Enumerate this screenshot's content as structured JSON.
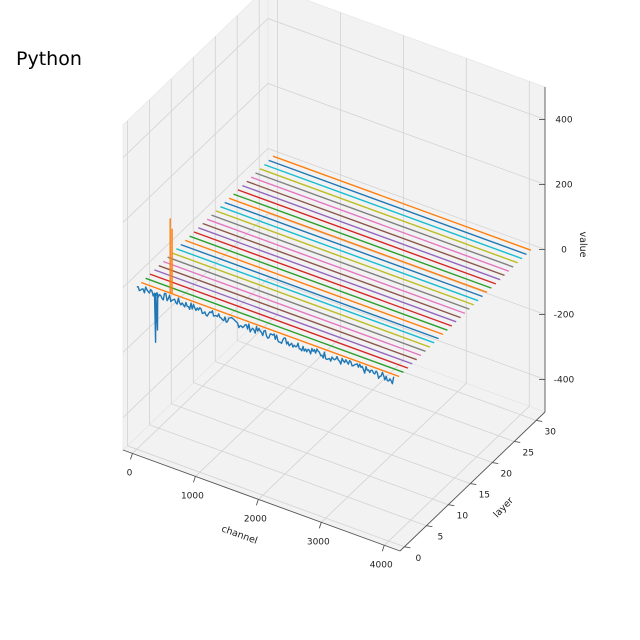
{
  "page_title": "Python",
  "chart_data": {
    "type": "line-3d",
    "title": "",
    "xlabel": "channel",
    "ylabel": "layer",
    "zlabel": "value",
    "xlim": [
      -150,
      4250
    ],
    "ylim": [
      -1,
      32
    ],
    "zlim": [
      -500,
      500
    ],
    "xticks": [
      0,
      1000,
      2000,
      3000,
      4000
    ],
    "yticks": [
      0,
      5,
      10,
      15,
      20,
      25,
      30
    ],
    "zticks": [
      -400,
      -200,
      0,
      200,
      400
    ],
    "grid": true,
    "pane_color": "#f2f2f2",
    "series_colors": [
      "#1f77b4",
      "#ff7f0e",
      "#2ca02c",
      "#d62728",
      "#9467bd",
      "#8c564b",
      "#e377c2",
      "#7f7f7f",
      "#bcbd22",
      "#17becf"
    ],
    "layers": [
      0,
      1,
      2,
      3,
      4,
      5,
      6,
      7,
      8,
      9,
      10,
      11,
      12,
      13,
      14,
      15,
      16,
      17,
      18,
      19,
      20,
      21,
      22,
      23,
      24,
      25,
      26,
      27,
      28,
      29,
      30,
      31
    ],
    "channel_range": [
      0,
      4096
    ],
    "baseline_value": 0,
    "layer0_noise": 12,
    "layer0_spikes": [
      {
        "channel": 300,
        "value": -150
      },
      {
        "channel": 330,
        "value": -110
      }
    ],
    "layer1_spikes": [
      {
        "channel": 460,
        "value": 230
      },
      {
        "channel": 490,
        "value": 200
      }
    ]
  }
}
